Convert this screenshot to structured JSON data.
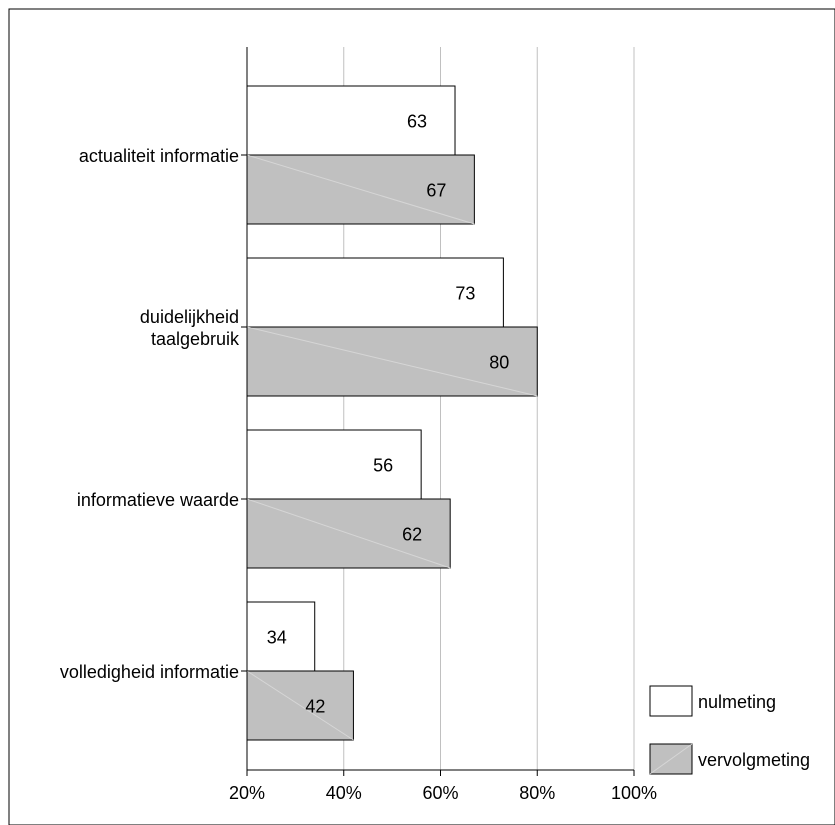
{
  "chart_data": {
    "type": "bar",
    "orientation": "horizontal",
    "categories": [
      [
        "actualiteit informatie"
      ],
      [
        "duidelijkheid",
        "taalgebruik"
      ],
      [
        "informatieve waarde"
      ],
      [
        "volledigheid informatie"
      ]
    ],
    "series": [
      {
        "name": "nulmeting",
        "values": [
          63,
          73,
          56,
          34
        ],
        "color": "#ffffff"
      },
      {
        "name": "vervolgmeting",
        "values": [
          67,
          80,
          62,
          42
        ],
        "color": "#c0c0c0"
      }
    ],
    "xlim": [
      20,
      100
    ],
    "xticks": [
      "20%",
      "40%",
      "60%",
      "80%",
      "100%"
    ],
    "xtick_values": [
      20,
      40,
      60,
      80,
      100
    ],
    "title": "",
    "xlabel": "",
    "ylabel": "",
    "grid": "vertical",
    "legend_position": "bottom-right"
  }
}
